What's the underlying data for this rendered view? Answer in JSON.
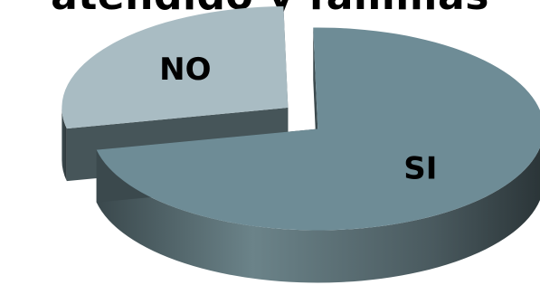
{
  "chart_data": {
    "type": "pie",
    "title": "atendido y familias",
    "categories": [
      "SI",
      "NO"
    ],
    "values": [
      72,
      28
    ],
    "colors": {
      "SI": "#6E8C96",
      "NO": "#A9BCC3",
      "side_dark": "#2F3B3F",
      "side_mid": "#5A6E74"
    },
    "style": "3d-exploded",
    "legend": "none"
  }
}
